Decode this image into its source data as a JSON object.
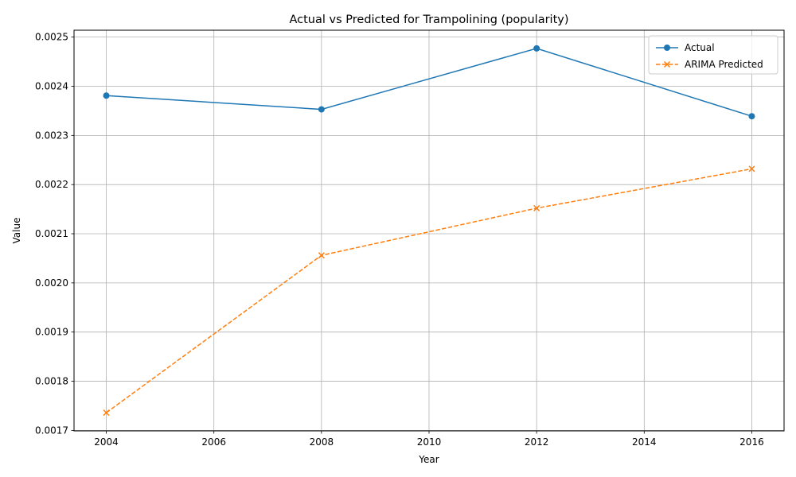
{
  "chart_data": {
    "type": "line",
    "title": "Actual vs Predicted for Trampolining (popularity)",
    "xlabel": "Year",
    "ylabel": "Value",
    "x": [
      2004,
      2008,
      2012,
      2016
    ],
    "xticks": [
      "2004",
      "2006",
      "2008",
      "2010",
      "2012",
      "2014",
      "2016"
    ],
    "yticks": [
      "0.0017",
      "0.0018",
      "0.0019",
      "0.0020",
      "0.0021",
      "0.0022",
      "0.0023",
      "0.0024",
      "0.0025"
    ],
    "xlim": [
      2003.4,
      2016.6
    ],
    "ylim": [
      0.001699,
      0.002514
    ],
    "grid": true,
    "legend_position": "top-right",
    "series": [
      {
        "name": "Actual",
        "values": [
          0.002381,
          0.002353,
          0.002477,
          0.002339
        ],
        "color": "#1f77b4",
        "linestyle": "solid",
        "marker": "circle"
      },
      {
        "name": "ARIMA Predicted",
        "values": [
          0.001736,
          0.002056,
          0.002152,
          0.002232
        ],
        "color": "#ff7f0e",
        "linestyle": "dashed",
        "marker": "x"
      }
    ]
  }
}
